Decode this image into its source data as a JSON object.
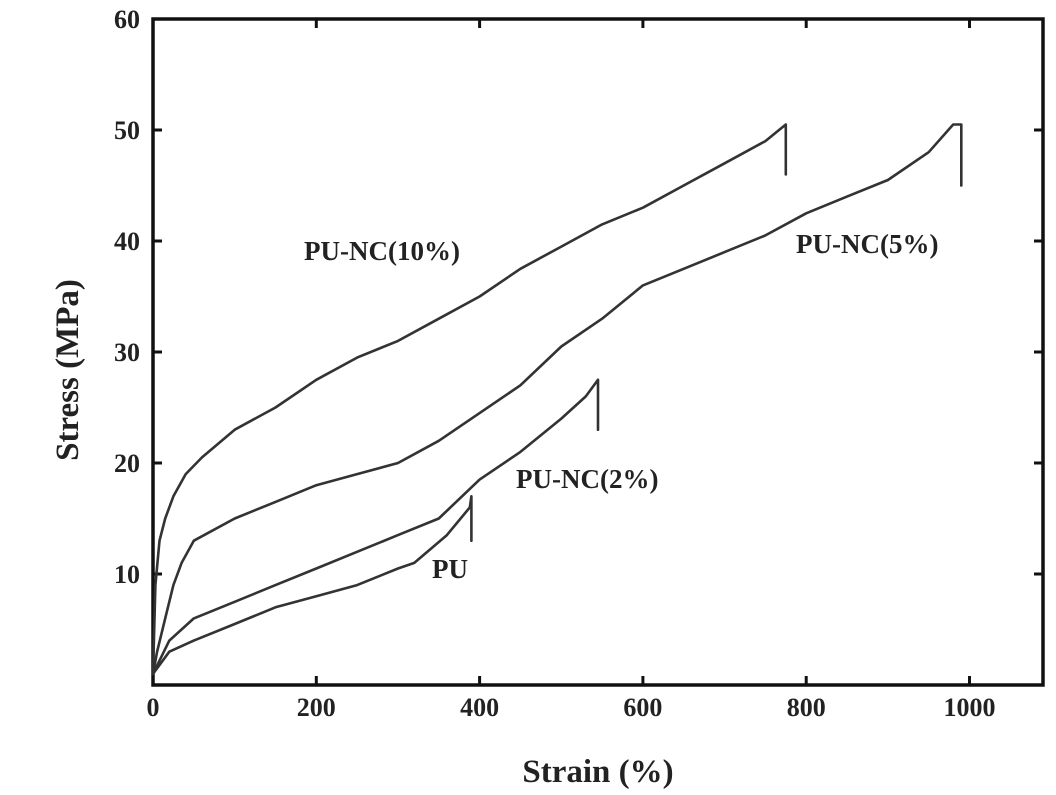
{
  "chart_data": {
    "type": "line",
    "title": "",
    "xlabel": "Strain (%)",
    "ylabel": "Stress (MPa)",
    "xlim": [
      0,
      1090
    ],
    "ylim": [
      0,
      60
    ],
    "xticks": [
      0,
      200,
      400,
      600,
      800,
      1000
    ],
    "yticks": [
      10,
      20,
      30,
      40,
      50,
      60
    ],
    "grid": false,
    "colors": {
      "line": "#333333",
      "axis": "#111111"
    },
    "series": [
      {
        "name": "PU-NC(10%)",
        "points": [
          [
            0,
            1
          ],
          [
            3,
            9
          ],
          [
            8,
            13
          ],
          [
            15,
            15
          ],
          [
            25,
            17
          ],
          [
            40,
            19
          ],
          [
            60,
            20.5
          ],
          [
            100,
            23
          ],
          [
            150,
            25
          ],
          [
            200,
            27.5
          ],
          [
            250,
            29.5
          ],
          [
            300,
            31
          ],
          [
            350,
            33
          ],
          [
            400,
            35
          ],
          [
            450,
            37.5
          ],
          [
            500,
            39.5
          ],
          [
            550,
            41.5
          ],
          [
            600,
            43
          ],
          [
            650,
            45
          ],
          [
            700,
            47
          ],
          [
            750,
            49
          ],
          [
            775,
            50.5
          ],
          [
            775,
            46
          ]
        ]
      },
      {
        "name": "PU-NC(5%)",
        "points": [
          [
            0,
            1
          ],
          [
            5,
            3
          ],
          [
            15,
            6
          ],
          [
            25,
            9
          ],
          [
            35,
            11
          ],
          [
            50,
            13
          ],
          [
            100,
            15
          ],
          [
            150,
            16.5
          ],
          [
            200,
            18
          ],
          [
            250,
            19
          ],
          [
            300,
            20
          ],
          [
            350,
            22
          ],
          [
            400,
            24.5
          ],
          [
            450,
            27
          ],
          [
            500,
            30.5
          ],
          [
            550,
            33
          ],
          [
            600,
            36
          ],
          [
            650,
            37.5
          ],
          [
            700,
            39
          ],
          [
            750,
            40.5
          ],
          [
            800,
            42.5
          ],
          [
            850,
            44
          ],
          [
            900,
            45.5
          ],
          [
            950,
            48
          ],
          [
            980,
            50.5
          ],
          [
            990,
            50.5
          ],
          [
            990,
            45
          ]
        ]
      },
      {
        "name": "PU-NC(2%)",
        "points": [
          [
            0,
            1
          ],
          [
            20,
            4
          ],
          [
            50,
            6
          ],
          [
            100,
            7.5
          ],
          [
            150,
            9
          ],
          [
            200,
            10.5
          ],
          [
            250,
            12
          ],
          [
            300,
            13.5
          ],
          [
            350,
            15
          ],
          [
            400,
            18.5
          ],
          [
            450,
            21
          ],
          [
            500,
            24
          ],
          [
            530,
            26
          ],
          [
            545,
            27.5
          ],
          [
            545,
            23
          ]
        ]
      },
      {
        "name": "PU",
        "points": [
          [
            0,
            1
          ],
          [
            20,
            3
          ],
          [
            50,
            4
          ],
          [
            100,
            5.5
          ],
          [
            150,
            7
          ],
          [
            200,
            8
          ],
          [
            250,
            9
          ],
          [
            300,
            10.5
          ],
          [
            320,
            11
          ],
          [
            360,
            13.5
          ],
          [
            388,
            16
          ],
          [
            390,
            17
          ],
          [
            390,
            13
          ]
        ]
      }
    ],
    "annotations": [
      "PU-NC(10%)",
      "PU-NC(5%)",
      "PU-NC(2%)",
      "PU"
    ]
  }
}
